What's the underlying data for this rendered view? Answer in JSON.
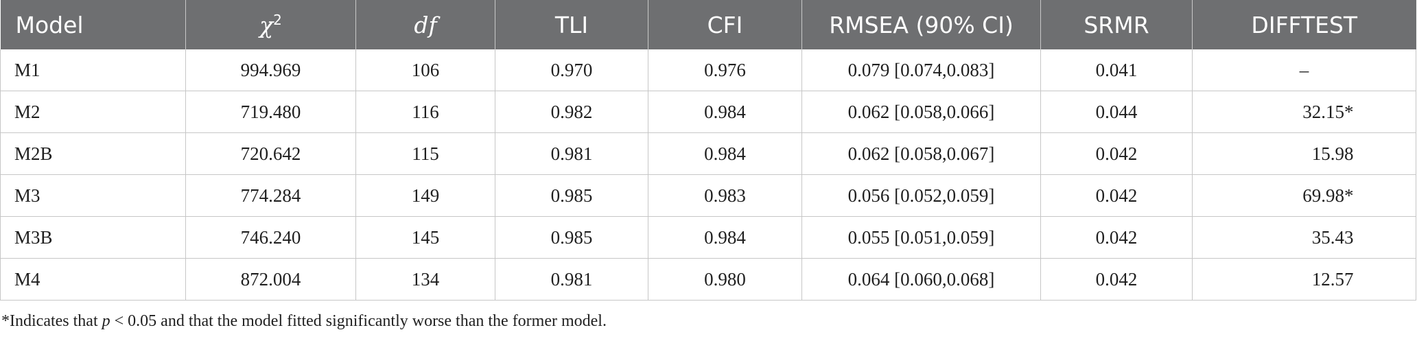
{
  "table": {
    "headers": {
      "model": "Model",
      "chi2_base": "χ",
      "chi2_sup": "2",
      "df": "df",
      "tli": "TLI",
      "cfi": "CFI",
      "rmsea": "RMSEA (90% CI)",
      "srmr": "SRMR",
      "difftest": "DIFFTEST"
    },
    "rows": [
      {
        "model": "M1",
        "chi2": "994.969",
        "df": "106",
        "tli": "0.970",
        "cfi": "0.976",
        "rmsea": "0.079 [0.074,0.083]",
        "srmr": "0.041",
        "difftest": "–"
      },
      {
        "model": "M2",
        "chi2": "719.480",
        "df": "116",
        "tli": "0.982",
        "cfi": "0.984",
        "rmsea": "0.062 [0.058,0.066]",
        "srmr": "0.044",
        "difftest": "32.15*"
      },
      {
        "model": "M2B",
        "chi2": "720.642",
        "df": "115",
        "tli": "0.981",
        "cfi": "0.984",
        "rmsea": "0.062 [0.058,0.067]",
        "srmr": "0.042",
        "difftest": "15.98"
      },
      {
        "model": "M3",
        "chi2": "774.284",
        "df": "149",
        "tli": "0.985",
        "cfi": "0.983",
        "rmsea": "0.056 [0.052,0.059]",
        "srmr": "0.042",
        "difftest": "69.98*"
      },
      {
        "model": "M3B",
        "chi2": "746.240",
        "df": "145",
        "tli": "0.985",
        "cfi": "0.984",
        "rmsea": "0.055 [0.051,0.059]",
        "srmr": "0.042",
        "difftest": "35.43"
      },
      {
        "model": "M4",
        "chi2": "872.004",
        "df": "134",
        "tli": "0.981",
        "cfi": "0.980",
        "rmsea": "0.064 [0.060,0.068]",
        "srmr": "0.042",
        "difftest": "12.57"
      }
    ]
  },
  "footnote": {
    "prefix": "*Indicates that ",
    "var": "p",
    "suffix": " < 0.05 and that the model fitted significantly worse than the former model."
  },
  "colors": {
    "header_bg": "#6e6f71",
    "header_text": "#ffffff",
    "grid": "#c6c6c6",
    "body_text": "#1f1f1f"
  }
}
